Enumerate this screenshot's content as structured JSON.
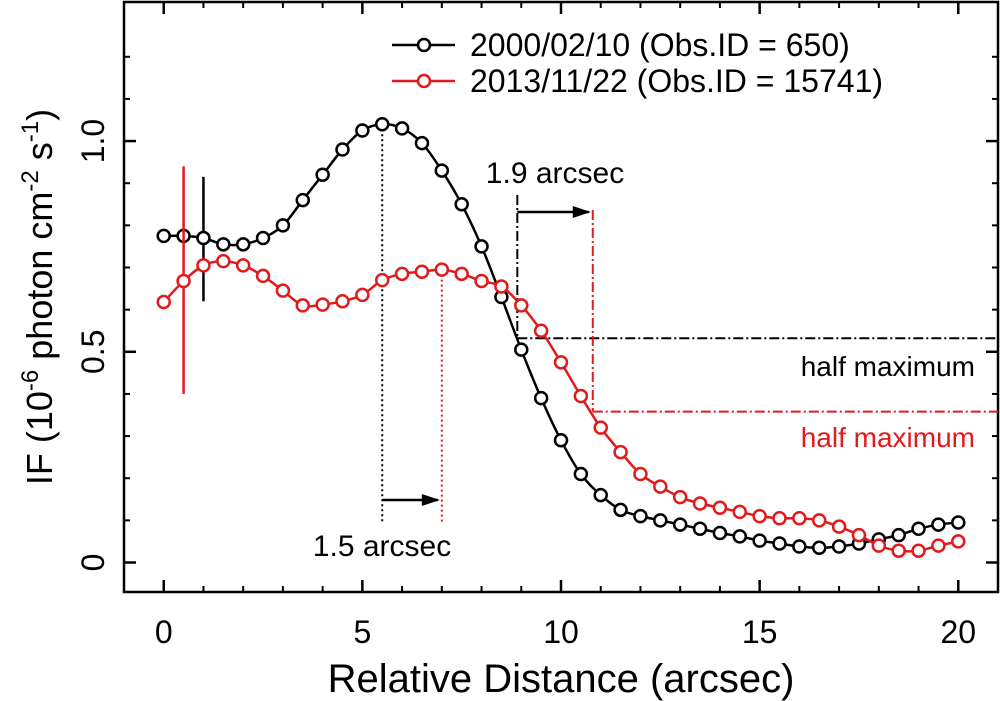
{
  "chart_data": {
    "type": "line",
    "xlabel": "Relative Distance (arcsec)",
    "ylabel_parts": [
      "IF (10",
      "-6",
      " photon cm",
      "-2",
      " s",
      "-1",
      ")"
    ],
    "xlim": [
      -1,
      21
    ],
    "ylim": [
      -0.07,
      1.33
    ],
    "xticks": [
      0,
      5,
      10,
      15,
      20
    ],
    "xtick_labels": [
      "0",
      "5",
      "10",
      "15",
      "20"
    ],
    "yticks": [
      0,
      0.5,
      1.0
    ],
    "ytick_labels": [
      "0",
      "0.5",
      "1.0"
    ],
    "legend_position": "top-right",
    "series": [
      {
        "name": "2000/02/10 (Obs.ID = 650)",
        "color": "#000000",
        "x": [
          0,
          0.5,
          1,
          1.5,
          2,
          2.5,
          3,
          3.5,
          4,
          4.5,
          5,
          5.5,
          6,
          6.5,
          7,
          7.5,
          8,
          8.5,
          9,
          9.5,
          10,
          10.5,
          11,
          11.5,
          12,
          12.5,
          13,
          13.5,
          14,
          14.5,
          15,
          15.5,
          16,
          16.5,
          17,
          17.5,
          18,
          18.5,
          19,
          19.5,
          20
        ],
        "y": [
          0.775,
          0.775,
          0.77,
          0.755,
          0.755,
          0.77,
          0.8,
          0.86,
          0.92,
          0.98,
          1.025,
          1.04,
          1.03,
          0.995,
          0.93,
          0.85,
          0.75,
          0.63,
          0.505,
          0.39,
          0.29,
          0.21,
          0.16,
          0.125,
          0.11,
          0.1,
          0.09,
          0.08,
          0.07,
          0.062,
          0.052,
          0.045,
          0.038,
          0.035,
          0.038,
          0.045,
          0.055,
          0.065,
          0.08,
          0.09,
          0.095
        ],
        "errorbar": {
          "x": 1,
          "low": 0.62,
          "high": 0.915
        }
      },
      {
        "name": "2013/11/22 (Obs.ID = 15741)",
        "color": "#e31a1c",
        "x": [
          0,
          0.5,
          1,
          1.5,
          2,
          2.5,
          3,
          3.5,
          4,
          4.5,
          5,
          5.5,
          6,
          6.5,
          7,
          7.5,
          8,
          8.5,
          9,
          9.5,
          10,
          10.5,
          11,
          11.5,
          12,
          12.5,
          13,
          13.5,
          14,
          14.5,
          15,
          15.5,
          16,
          16.5,
          17,
          17.5,
          18,
          18.5,
          19,
          19.5,
          20
        ],
        "y": [
          0.618,
          0.668,
          0.705,
          0.715,
          0.705,
          0.68,
          0.645,
          0.61,
          0.612,
          0.62,
          0.635,
          0.67,
          0.685,
          0.69,
          0.695,
          0.685,
          0.668,
          0.655,
          0.61,
          0.55,
          0.475,
          0.395,
          0.32,
          0.262,
          0.21,
          0.18,
          0.155,
          0.14,
          0.13,
          0.12,
          0.11,
          0.105,
          0.105,
          0.1,
          0.085,
          0.065,
          0.04,
          0.028,
          0.028,
          0.04,
          0.05
        ],
        "errorbar": {
          "x": 0.5,
          "low": 0.4,
          "high": 0.94
        }
      }
    ],
    "annotations": {
      "peak_shift": {
        "label": "1.5 arcsec",
        "x_from": 5.5,
        "x_to": 7.0
      },
      "halfmax_shift": {
        "label": "1.9 arcsec",
        "x_from": 8.9,
        "x_to": 10.8
      },
      "half_max_black": {
        "label": "half maximum",
        "y": 0.532,
        "x_start": 8.9
      },
      "half_max_red": {
        "label": "half maximum",
        "y": 0.358,
        "x_start": 10.8
      }
    }
  }
}
